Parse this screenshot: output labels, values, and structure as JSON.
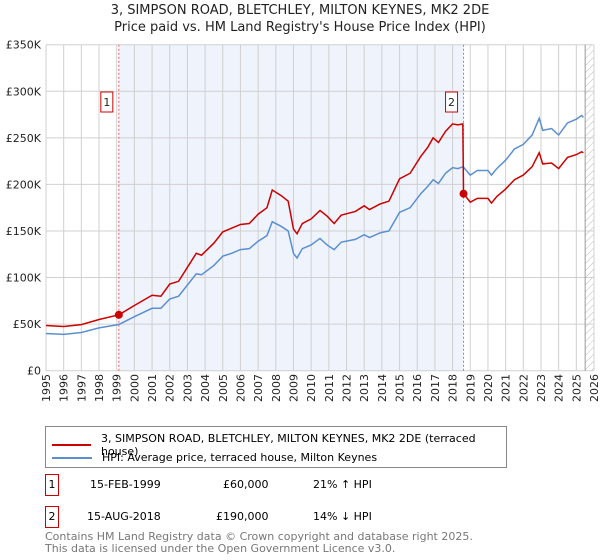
{
  "header": {
    "title": "3, SIMPSON ROAD, BLETCHLEY, MILTON KEYNES, MK2 2DE",
    "subtitle": "Price paid vs. HM Land Registry's House Price Index (HPI)"
  },
  "chart_data": {
    "type": "line",
    "title": "3, SIMPSON ROAD, BLETCHLEY, MILTON KEYNES, MK2 2DE",
    "subtitle": "Price paid vs. HM Land Registry's House Price Index (HPI)",
    "xlim": [
      1995,
      2026
    ],
    "ylim": [
      0,
      350000
    ],
    "x_ticks": [
      "1995",
      "1996",
      "1997",
      "1998",
      "1999",
      "2000",
      "2001",
      "2002",
      "2003",
      "2004",
      "2005",
      "2006",
      "2007",
      "2008",
      "2009",
      "2010",
      "2011",
      "2012",
      "2013",
      "2014",
      "2015",
      "2016",
      "2017",
      "2018",
      "2019",
      "2020",
      "2021",
      "2022",
      "2023",
      "2024",
      "2025",
      "2026"
    ],
    "y_ticks": [
      {
        "v": 0,
        "label": "£0"
      },
      {
        "v": 50000,
        "label": "£50K"
      },
      {
        "v": 100000,
        "label": "£100K"
      },
      {
        "v": 150000,
        "label": "£150K"
      },
      {
        "v": 200000,
        "label": "£200K"
      },
      {
        "v": 250000,
        "label": "£250K"
      },
      {
        "v": 300000,
        "label": "£300K"
      },
      {
        "v": 350000,
        "label": "£350K"
      }
    ],
    "grid": true,
    "colors": {
      "property": "#cc0000",
      "hpi": "#5b8fd0",
      "shade": "#eef3fc"
    },
    "series": [
      {
        "name": "3, SIMPSON ROAD, BLETCHLEY, MILTON KEYNES, MK2 2DE (terraced house)",
        "points": [
          [
            1995,
            48500
          ],
          [
            1996,
            47500
          ],
          [
            1997,
            49500
          ],
          [
            1998,
            55000
          ],
          [
            1999.12,
            60000
          ],
          [
            2000,
            70000
          ],
          [
            2001,
            81000
          ],
          [
            2001.5,
            80000
          ],
          [
            2002,
            93000
          ],
          [
            2002.5,
            96000
          ],
          [
            2003,
            111000
          ],
          [
            2003.5,
            126000
          ],
          [
            2003.8,
            124000
          ],
          [
            2004.5,
            137000
          ],
          [
            2005,
            149000
          ],
          [
            2005.5,
            153000
          ],
          [
            2006,
            157000
          ],
          [
            2006.5,
            158000
          ],
          [
            2007,
            168000
          ],
          [
            2007.5,
            175000
          ],
          [
            2007.8,
            194000
          ],
          [
            2008.3,
            188000
          ],
          [
            2008.7,
            182000
          ],
          [
            2009,
            152000
          ],
          [
            2009.2,
            147000
          ],
          [
            2009.5,
            158000
          ],
          [
            2010,
            163000
          ],
          [
            2010.5,
            172000
          ],
          [
            2010.9,
            166000
          ],
          [
            2011.3,
            158000
          ],
          [
            2011.7,
            167000
          ],
          [
            2012.5,
            171000
          ],
          [
            2013,
            177000
          ],
          [
            2013.3,
            173000
          ],
          [
            2013.9,
            179000
          ],
          [
            2014.4,
            182000
          ],
          [
            2015,
            206000
          ],
          [
            2015.6,
            212000
          ],
          [
            2016.2,
            230000
          ],
          [
            2016.6,
            240000
          ],
          [
            2016.9,
            250000
          ],
          [
            2017.2,
            245000
          ],
          [
            2017.6,
            257000
          ],
          [
            2018,
            265000
          ],
          [
            2018.3,
            264000
          ],
          [
            2018.58,
            265000
          ],
          [
            2018.62,
            190000
          ],
          [
            2019,
            181000
          ],
          [
            2019.4,
            185000
          ],
          [
            2020,
            185000
          ],
          [
            2020.2,
            180000
          ],
          [
            2020.5,
            187000
          ],
          [
            2021,
            195000
          ],
          [
            2021.5,
            205000
          ],
          [
            2022,
            210000
          ],
          [
            2022.5,
            219000
          ],
          [
            2022.9,
            234000
          ],
          [
            2023.1,
            222000
          ],
          [
            2023.6,
            223000
          ],
          [
            2024,
            217000
          ],
          [
            2024.5,
            229000
          ],
          [
            2025,
            232000
          ],
          [
            2025.3,
            235000
          ],
          [
            2025.4,
            234000
          ]
        ]
      },
      {
        "name": "HPI: Average price, terraced house, Milton Keynes",
        "points": [
          [
            1995,
            40000
          ],
          [
            1996,
            39000
          ],
          [
            1997,
            41000
          ],
          [
            1998,
            46000
          ],
          [
            1999.12,
            49600
          ],
          [
            2000,
            58000
          ],
          [
            2001,
            67000
          ],
          [
            2001.5,
            67000
          ],
          [
            2002,
            77000
          ],
          [
            2002.5,
            80000
          ],
          [
            2003,
            92000
          ],
          [
            2003.5,
            104000
          ],
          [
            2003.8,
            103000
          ],
          [
            2004.5,
            113000
          ],
          [
            2005,
            123000
          ],
          [
            2005.5,
            126000
          ],
          [
            2006,
            130000
          ],
          [
            2006.5,
            131000
          ],
          [
            2007,
            139000
          ],
          [
            2007.5,
            145000
          ],
          [
            2007.8,
            160000
          ],
          [
            2008.3,
            155000
          ],
          [
            2008.7,
            150000
          ],
          [
            2009,
            126000
          ],
          [
            2009.2,
            121000
          ],
          [
            2009.5,
            131000
          ],
          [
            2010,
            135000
          ],
          [
            2010.5,
            142000
          ],
          [
            2010.9,
            135000
          ],
          [
            2011.3,
            130000
          ],
          [
            2011.7,
            138000
          ],
          [
            2012.5,
            141000
          ],
          [
            2013,
            146000
          ],
          [
            2013.3,
            143000
          ],
          [
            2013.9,
            148000
          ],
          [
            2014.4,
            150000
          ],
          [
            2015,
            170000
          ],
          [
            2015.6,
            175000
          ],
          [
            2016.2,
            190000
          ],
          [
            2016.6,
            198000
          ],
          [
            2016.9,
            205000
          ],
          [
            2017.2,
            201000
          ],
          [
            2017.6,
            212000
          ],
          [
            2018,
            218000
          ],
          [
            2018.3,
            217000
          ],
          [
            2018.6,
            219000
          ],
          [
            2019,
            210000
          ],
          [
            2019.4,
            215000
          ],
          [
            2020,
            215000
          ],
          [
            2020.2,
            210000
          ],
          [
            2020.5,
            217000
          ],
          [
            2021,
            226000
          ],
          [
            2021.5,
            238000
          ],
          [
            2022,
            243000
          ],
          [
            2022.5,
            253000
          ],
          [
            2022.9,
            271000
          ],
          [
            2023.1,
            258000
          ],
          [
            2023.6,
            260000
          ],
          [
            2024,
            253000
          ],
          [
            2024.5,
            266000
          ],
          [
            2025,
            270000
          ],
          [
            2025.3,
            274000
          ],
          [
            2025.4,
            272000
          ]
        ]
      }
    ],
    "annotations": [
      {
        "label": "1",
        "x": 1999.12,
        "y": 60000
      },
      {
        "label": "2",
        "x": 2018.62,
        "y": 190000
      }
    ],
    "shaded_range": [
      1999.12,
      2018.62
    ],
    "forecast_hatch_from": 2025.5,
    "legend_placement": "bottom"
  },
  "legend": {
    "property": "3, SIMPSON ROAD, BLETCHLEY, MILTON KEYNES, MK2 2DE (terraced house)",
    "hpi": "HPI: Average price, terraced house, Milton Keynes"
  },
  "sales": [
    {
      "num": "1",
      "date": "15-FEB-1999",
      "price": "£60,000",
      "hpi": "21% ↑ HPI"
    },
    {
      "num": "2",
      "date": "15-AUG-2018",
      "price": "£190,000",
      "hpi": "14% ↓ HPI"
    }
  ],
  "footer": {
    "line1": "Contains HM Land Registry data © Crown copyright and database right 2025.",
    "line2": "This data is licensed under the Open Government Licence v3.0."
  }
}
